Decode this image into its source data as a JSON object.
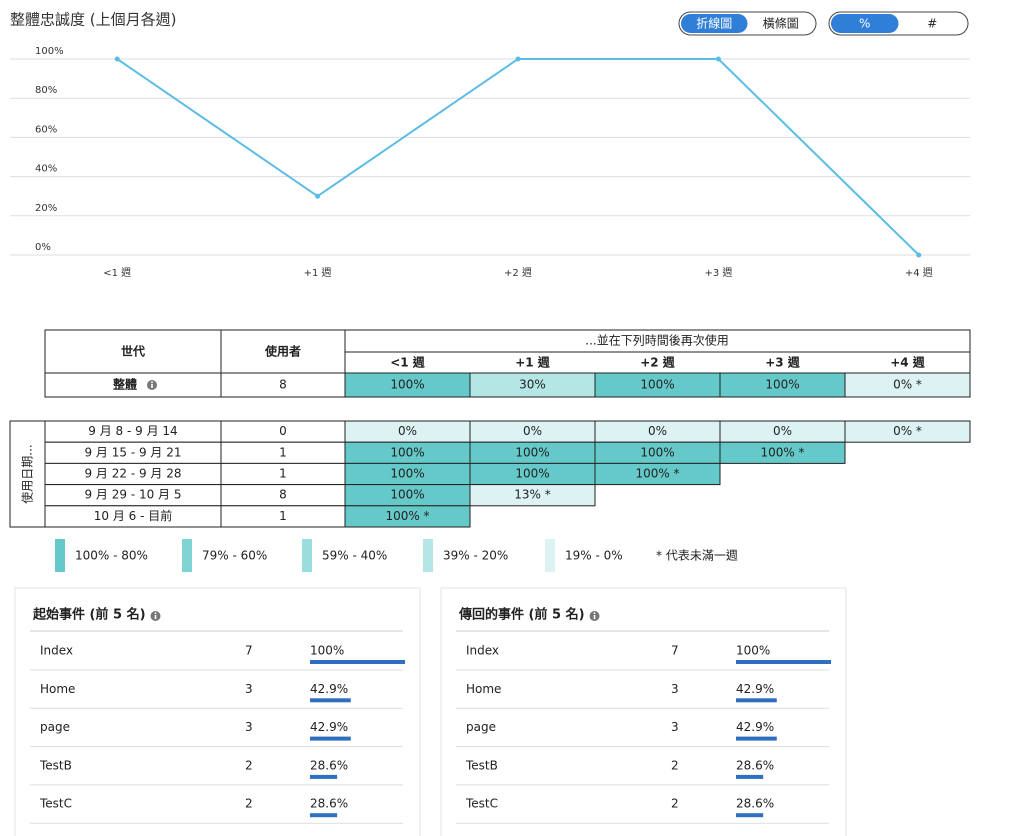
{
  "chart_data": {
    "type": "line",
    "title": "整體忠誠度 (上個月各週)",
    "categories": [
      "<1 週",
      "+1 週",
      "+2 週",
      "+3 週",
      "+4 週"
    ],
    "series": [
      {
        "color": "#5bbde6",
        "values": [
          100,
          30,
          100,
          100,
          0
        ]
      }
    ],
    "ylim": [
      0,
      100
    ],
    "yticks": [
      {
        "value": 0,
        "label": "0%"
      },
      {
        "value": 20,
        "label": "20%"
      },
      {
        "value": 40,
        "label": "40%"
      },
      {
        "value": 60,
        "label": "60%"
      },
      {
        "value": 80,
        "label": "80%"
      },
      {
        "value": 100,
        "label": "100%"
      }
    ],
    "grid": true
  },
  "toggles": {
    "chart_types": [
      "折線圖",
      "橫條圖"
    ],
    "active_chart_type": 0,
    "units": [
      "%",
      "#"
    ],
    "active_unit": 0,
    "color": "#2f7ed8"
  },
  "summary_table": {
    "headers": [
      "世代",
      "使用者"
    ],
    "period_header": "...並在下列時間後再次使用",
    "periods": [
      "<1 週",
      "+1 週",
      "+2 週",
      "+3 週",
      "+4 週"
    ],
    "overall": {
      "label": "整體",
      "users": 8,
      "values": [
        100,
        30,
        100,
        100,
        0
      ],
      "value_labels": [
        "100%",
        "30%",
        "100%",
        "100%",
        "0% *"
      ]
    }
  },
  "cohorts": {
    "axis_label": "使用日期...",
    "rows": [
      {
        "label": "9 月 8 - 9 月 14",
        "users": 0,
        "values": [
          0,
          0,
          0,
          0,
          0
        ],
        "value_labels": [
          "0%",
          "0%",
          "0%",
          "0%",
          "0% *"
        ]
      },
      {
        "label": "9 月 15 - 9 月 21",
        "users": 1,
        "values": [
          100,
          100,
          100,
          100
        ],
        "value_labels": [
          "100%",
          "100%",
          "100%",
          "100% *"
        ]
      },
      {
        "label": "9 月 22 - 9 月 28",
        "users": 1,
        "values": [
          100,
          100,
          100
        ],
        "value_labels": [
          "100%",
          "100%",
          "100% *"
        ]
      },
      {
        "label": "9 月 29 - 10 月 5",
        "users": 8,
        "values": [
          100,
          13
        ],
        "value_labels": [
          "100%",
          "13% *"
        ]
      },
      {
        "label": "10 月 6 - 目前",
        "users": 1,
        "values": [
          100
        ],
        "value_labels": [
          "100% *"
        ]
      }
    ]
  },
  "legend": {
    "items": [
      {
        "label": "100% - 80%",
        "min": 80,
        "color": "#66c9c9"
      },
      {
        "label": "79% - 60%",
        "min": 60,
        "color": "#7fd3d3"
      },
      {
        "label": "59% - 40%",
        "min": 40,
        "color": "#99dddd"
      },
      {
        "label": "39% - 20%",
        "min": 20,
        "color": "#b4e6e6"
      },
      {
        "label": "19% - 0%",
        "min": 0,
        "color": "#ddf3f3"
      }
    ],
    "note": "* 代表未滿一週"
  },
  "panels": [
    {
      "title": "起始事件 (前 5 名)",
      "bar_color": "#2f6fbf",
      "rows": [
        {
          "name": "Index",
          "count": 7,
          "percent": 100,
          "percent_label": "100%"
        },
        {
          "name": "Home",
          "count": 3,
          "percent": 42.9,
          "percent_label": "42.9%"
        },
        {
          "name": "page",
          "count": 3,
          "percent": 42.9,
          "percent_label": "42.9%"
        },
        {
          "name": "TestB",
          "count": 2,
          "percent": 28.6,
          "percent_label": "28.6%"
        },
        {
          "name": "TestC",
          "count": 2,
          "percent": 28.6,
          "percent_label": "28.6%"
        }
      ]
    },
    {
      "title": "傳回的事件 (前 5 名)",
      "bar_color": "#2f6fbf",
      "rows": [
        {
          "name": "Index",
          "count": 7,
          "percent": 100,
          "percent_label": "100%"
        },
        {
          "name": "Home",
          "count": 3,
          "percent": 42.9,
          "percent_label": "42.9%"
        },
        {
          "name": "page",
          "count": 3,
          "percent": 42.9,
          "percent_label": "42.9%"
        },
        {
          "name": "TestB",
          "count": 2,
          "percent": 28.6,
          "percent_label": "28.6%"
        },
        {
          "name": "TestC",
          "count": 2,
          "percent": 28.6,
          "percent_label": "28.6%"
        }
      ]
    }
  ]
}
